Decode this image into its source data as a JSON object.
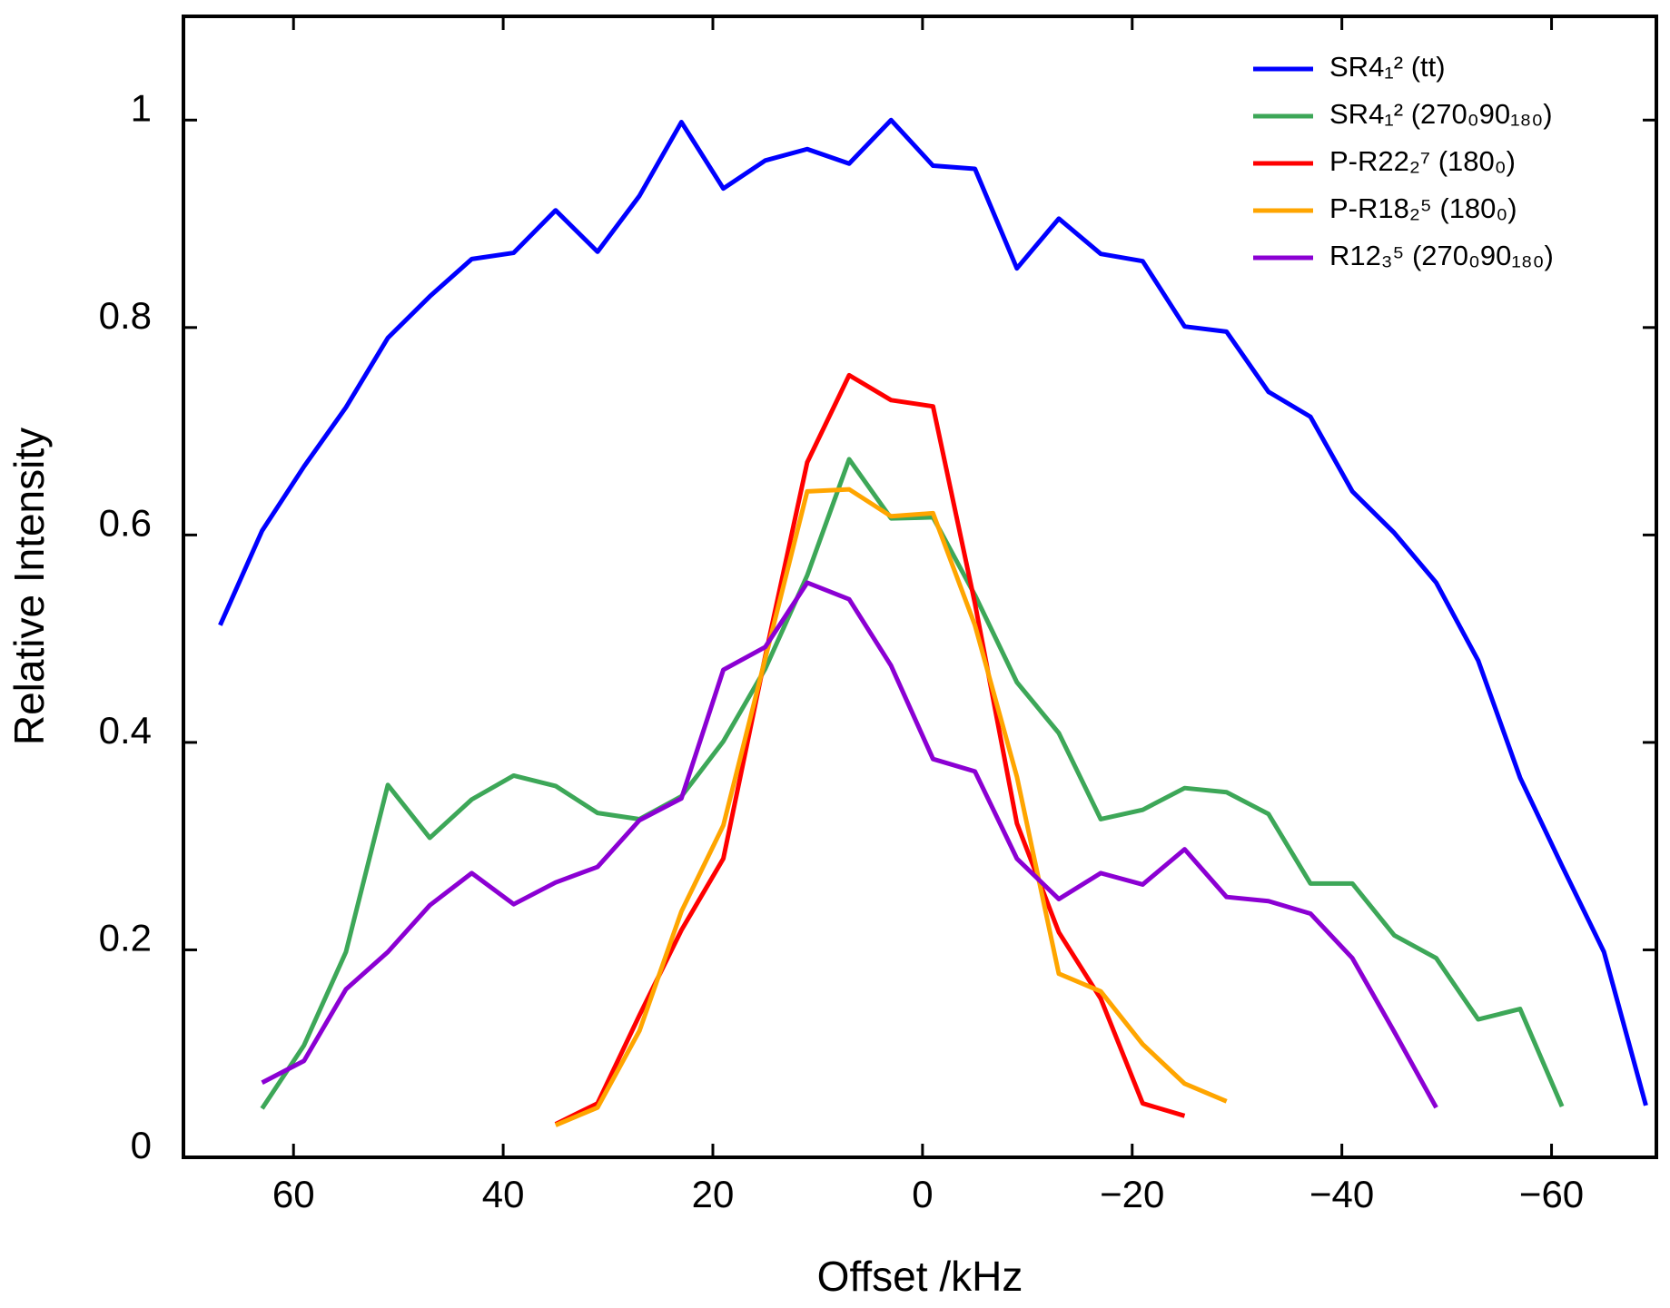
{
  "chart_data": {
    "type": "line",
    "x_label": "Offset /kHz",
    "y_label": "Relative Intensity",
    "xlim": [
      70.5,
      -70
    ],
    "ylim": [
      0,
      1.1
    ],
    "xticks": [
      60,
      40,
      20,
      0,
      {
        "value": -20,
        "label": "−20"
      },
      {
        "value": -40,
        "label": "−40"
      },
      {
        "value": -60,
        "label": "−60"
      }
    ],
    "yticks": [
      0,
      0.2,
      0.4,
      0.6,
      0.8,
      1
    ],
    "legend": "upper right",
    "series": [
      {
        "name": "SR4₁² (tt)",
        "color": "#0000ff",
        "x": [
          67,
          63,
          59,
          55,
          51,
          47,
          43,
          39,
          35,
          31,
          27,
          23,
          19,
          15,
          11,
          7,
          3,
          -1,
          -5,
          -9,
          -13,
          -17,
          -21,
          -25,
          -29,
          -33,
          -37,
          -41,
          -45,
          -49,
          -53,
          -57,
          -61,
          -65,
          -69
        ],
        "values": [
          0.513,
          0.604,
          0.666,
          0.723,
          0.79,
          0.83,
          0.866,
          0.872,
          0.913,
          0.873,
          0.927,
          0.998,
          0.934,
          0.961,
          0.972,
          0.958,
          1.0,
          0.956,
          0.953,
          0.857,
          0.905,
          0.871,
          0.864,
          0.801,
          0.796,
          0.738,
          0.714,
          0.642,
          0.602,
          0.554,
          0.479,
          0.366,
          0.281,
          0.198,
          0.05
        ]
      },
      {
        "name": "SR4₁² (270₀90₁₈₀)",
        "color": "#3da758",
        "x": [
          63,
          59,
          55,
          51,
          47,
          43,
          39,
          35,
          31,
          27,
          23,
          19,
          15,
          11,
          7,
          3,
          -1,
          -5,
          -9,
          -13,
          -17,
          -21,
          -25,
          -29,
          -33,
          -37,
          -41,
          -45,
          -49,
          -53,
          -57,
          -61
        ],
        "values": [
          0.047,
          0.108,
          0.198,
          0.359,
          0.308,
          0.345,
          0.368,
          0.358,
          0.332,
          0.326,
          0.348,
          0.401,
          0.471,
          0.561,
          0.673,
          0.616,
          0.617,
          0.542,
          0.458,
          0.409,
          0.326,
          0.335,
          0.356,
          0.352,
          0.331,
          0.264,
          0.264,
          0.214,
          0.192,
          0.133,
          0.143,
          0.049
        ]
      },
      {
        "name": "P-R22₂⁷ (180₀)",
        "color": "#ff0000",
        "x": [
          35,
          31,
          27,
          23,
          19,
          15,
          11,
          7,
          3,
          -1,
          -5,
          -9,
          -13,
          -17,
          -21,
          -25
        ],
        "values": [
          0.032,
          0.052,
          0.137,
          0.219,
          0.288,
          0.483,
          0.67,
          0.754,
          0.73,
          0.724,
          0.534,
          0.322,
          0.217,
          0.153,
          0.052,
          0.04
        ]
      },
      {
        "name": "P-R18₂⁵ (180₀)",
        "color": "#ffa500",
        "x": [
          35,
          31,
          27,
          23,
          19,
          15,
          11,
          7,
          3,
          -1,
          -5,
          -9,
          -13,
          -17,
          -21,
          -25,
          -29
        ],
        "values": [
          0.031,
          0.048,
          0.122,
          0.237,
          0.32,
          0.481,
          0.642,
          0.644,
          0.618,
          0.621,
          0.513,
          0.367,
          0.177,
          0.16,
          0.109,
          0.071,
          0.054
        ]
      },
      {
        "name": "R12₃⁵ (270₀90₁₈₀)",
        "color": "#8b00d3",
        "x": [
          63,
          59,
          55,
          51,
          47,
          43,
          39,
          35,
          31,
          27,
          23,
          19,
          15,
          11,
          7,
          3,
          -1,
          -5,
          -9,
          -13,
          -17,
          -21,
          -25,
          -29,
          -33,
          -37,
          -41,
          -45,
          -49
        ],
        "values": [
          0.072,
          0.093,
          0.162,
          0.198,
          0.243,
          0.274,
          0.244,
          0.265,
          0.28,
          0.325,
          0.346,
          0.47,
          0.492,
          0.554,
          0.538,
          0.474,
          0.384,
          0.372,
          0.288,
          0.249,
          0.274,
          0.263,
          0.297,
          0.251,
          0.247,
          0.235,
          0.192,
          0.121,
          0.048
        ]
      }
    ]
  }
}
